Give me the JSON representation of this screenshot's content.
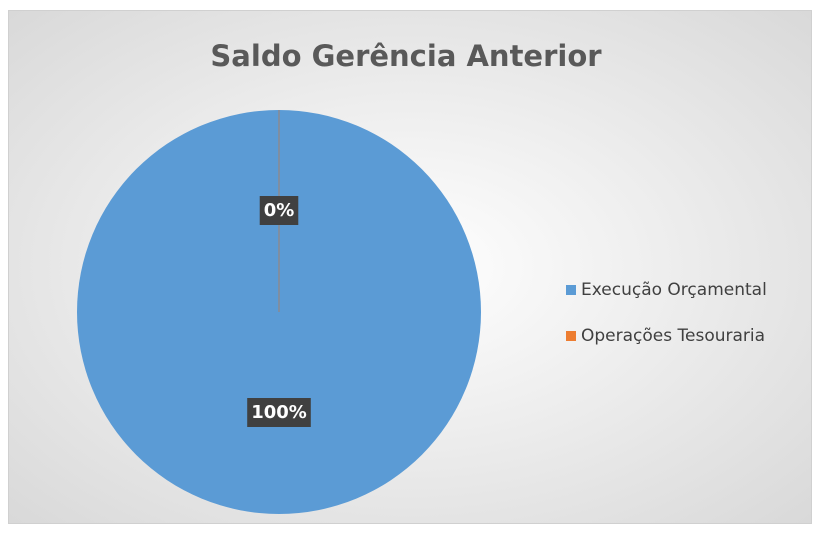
{
  "chart_data": {
    "type": "pie",
    "title": "Saldo Gerência Anterior",
    "categories": [
      "Execução Orçamental",
      "Operações Tesouraria"
    ],
    "values": [
      100,
      0
    ],
    "value_labels": [
      "100%",
      "0%"
    ],
    "colors": [
      "#5b9bd5",
      "#ed7d31"
    ],
    "legend": "right"
  }
}
